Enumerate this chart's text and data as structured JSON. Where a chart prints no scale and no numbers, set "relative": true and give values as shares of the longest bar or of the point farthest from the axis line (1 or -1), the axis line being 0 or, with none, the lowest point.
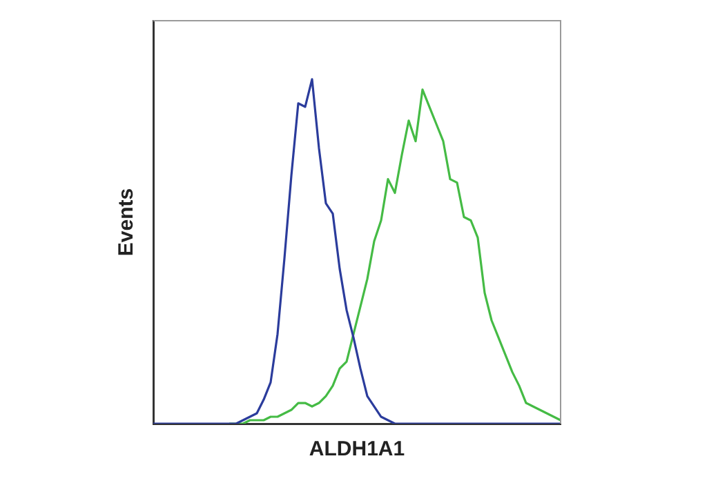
{
  "chart_data": {
    "type": "line",
    "relative": true,
    "xlabel": "ALDH1A1",
    "ylabel": "Events",
    "grid": false,
    "legend": false,
    "marker": "none",
    "line_style": "solid",
    "categories": [
      null,
      null,
      null,
      null,
      null,
      null,
      null,
      null,
      null,
      null,
      null,
      null,
      null,
      null,
      null,
      null,
      null,
      null,
      null,
      null,
      null,
      null,
      null,
      null,
      null,
      null,
      null,
      null,
      null,
      null,
      null,
      null,
      null,
      null,
      null,
      null,
      null,
      null,
      null,
      null,
      null,
      null,
      null,
      null,
      null,
      null,
      null,
      null,
      null,
      null,
      null,
      null,
      null,
      null,
      null,
      null,
      null,
      null,
      null,
      null
    ],
    "series": [
      {
        "color": "#2b3c9c",
        "values": [
          0,
          0,
          0,
          0,
          0,
          0,
          0,
          0,
          0,
          0,
          0,
          0,
          0,
          0.01,
          0.02,
          0.03,
          0.07,
          0.12,
          0.26,
          0.48,
          0.72,
          0.93,
          0.92,
          1,
          0.8,
          0.64,
          0.61,
          0.45,
          0.33,
          0.25,
          0.16,
          0.08,
          0.05,
          0.02,
          0.01,
          0,
          0,
          0,
          0,
          0,
          0,
          0,
          0,
          0,
          0,
          0,
          0,
          0,
          0,
          0,
          0,
          0,
          0,
          0,
          0,
          0,
          0,
          0,
          0,
          0
        ]
      },
      {
        "color": "#45bb45",
        "values": [
          null,
          null,
          null,
          null,
          null,
          null,
          null,
          null,
          null,
          null,
          null,
          0,
          0,
          0,
          0.01,
          0.01,
          0.01,
          0.02,
          0.02,
          0.03,
          0.04,
          0.06,
          0.06,
          0.05,
          0.06,
          0.08,
          0.11,
          0.16,
          0.18,
          0.26,
          0.34,
          0.42,
          0.53,
          0.59,
          0.71,
          0.67,
          0.78,
          0.88,
          0.82,
          0.97,
          0.92,
          0.87,
          0.82,
          0.71,
          0.7,
          0.6,
          0.59,
          0.54,
          0.38,
          0.3,
          0.25,
          0.2,
          0.15,
          0.11,
          0.06,
          0.05,
          0.04,
          0.03,
          0.02,
          0.01
        ]
      }
    ]
  }
}
